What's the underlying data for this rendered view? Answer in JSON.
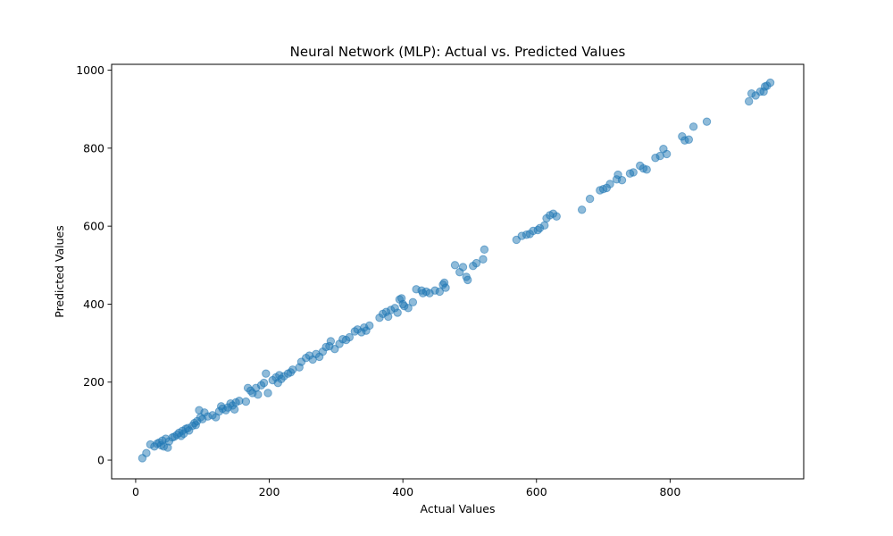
{
  "chart_data": {
    "type": "scatter",
    "title": "Neural Network (MLP): Actual vs. Predicted Values",
    "xlabel": "Actual Values",
    "ylabel": "Predicted Values",
    "xlim": [
      -36,
      1000
    ],
    "ylim": [
      -48,
      1015
    ],
    "xticks": [
      0,
      200,
      400,
      600,
      800
    ],
    "yticks": [
      0,
      200,
      400,
      600,
      800,
      1000
    ],
    "grid": false,
    "legend": "none",
    "point_color": "#1f77b4",
    "points": [
      [
        10,
        5
      ],
      [
        16,
        18
      ],
      [
        22,
        40
      ],
      [
        28,
        35
      ],
      [
        32,
        42
      ],
      [
        35,
        45
      ],
      [
        38,
        38
      ],
      [
        40,
        50
      ],
      [
        42,
        35
      ],
      [
        45,
        55
      ],
      [
        48,
        32
      ],
      [
        50,
        48
      ],
      [
        55,
        58
      ],
      [
        58,
        60
      ],
      [
        62,
        65
      ],
      [
        65,
        70
      ],
      [
        68,
        62
      ],
      [
        70,
        75
      ],
      [
        72,
        68
      ],
      [
        75,
        80
      ],
      [
        78,
        82
      ],
      [
        80,
        76
      ],
      [
        85,
        88
      ],
      [
        88,
        95
      ],
      [
        90,
        90
      ],
      [
        92,
        100
      ],
      [
        95,
        128
      ],
      [
        97,
        110
      ],
      [
        100,
        105
      ],
      [
        103,
        122
      ],
      [
        108,
        112
      ],
      [
        115,
        115
      ],
      [
        120,
        110
      ],
      [
        125,
        125
      ],
      [
        128,
        138
      ],
      [
        130,
        132
      ],
      [
        135,
        128
      ],
      [
        138,
        135
      ],
      [
        142,
        145
      ],
      [
        145,
        140
      ],
      [
        148,
        130
      ],
      [
        150,
        148
      ],
      [
        155,
        152
      ],
      [
        165,
        150
      ],
      [
        168,
        185
      ],
      [
        172,
        178
      ],
      [
        175,
        172
      ],
      [
        180,
        185
      ],
      [
        183,
        168
      ],
      [
        188,
        192
      ],
      [
        192,
        198
      ],
      [
        195,
        222
      ],
      [
        198,
        172
      ],
      [
        205,
        205
      ],
      [
        210,
        212
      ],
      [
        213,
        198
      ],
      [
        215,
        218
      ],
      [
        218,
        208
      ],
      [
        222,
        215
      ],
      [
        228,
        222
      ],
      [
        232,
        225
      ],
      [
        235,
        232
      ],
      [
        245,
        238
      ],
      [
        248,
        252
      ],
      [
        255,
        262
      ],
      [
        260,
        268
      ],
      [
        265,
        258
      ],
      [
        270,
        272
      ],
      [
        275,
        265
      ],
      [
        280,
        278
      ],
      [
        285,
        290
      ],
      [
        290,
        292
      ],
      [
        292,
        305
      ],
      [
        298,
        285
      ],
      [
        305,
        298
      ],
      [
        310,
        310
      ],
      [
        315,
        308
      ],
      [
        320,
        315
      ],
      [
        328,
        330
      ],
      [
        332,
        335
      ],
      [
        338,
        328
      ],
      [
        342,
        340
      ],
      [
        345,
        332
      ],
      [
        350,
        345
      ],
      [
        365,
        365
      ],
      [
        370,
        375
      ],
      [
        375,
        380
      ],
      [
        378,
        368
      ],
      [
        382,
        385
      ],
      [
        388,
        390
      ],
      [
        392,
        378
      ],
      [
        395,
        412
      ],
      [
        398,
        415
      ],
      [
        400,
        400
      ],
      [
        402,
        395
      ],
      [
        408,
        390
      ],
      [
        415,
        405
      ],
      [
        420,
        438
      ],
      [
        428,
        435
      ],
      [
        430,
        428
      ],
      [
        435,
        432
      ],
      [
        440,
        428
      ],
      [
        448,
        435
      ],
      [
        455,
        432
      ],
      [
        460,
        450
      ],
      [
        462,
        455
      ],
      [
        464,
        442
      ],
      [
        478,
        500
      ],
      [
        485,
        482
      ],
      [
        490,
        495
      ],
      [
        495,
        470
      ],
      [
        497,
        462
      ],
      [
        505,
        498
      ],
      [
        510,
        505
      ],
      [
        520,
        515
      ],
      [
        522,
        540
      ],
      [
        570,
        565
      ],
      [
        578,
        575
      ],
      [
        585,
        578
      ],
      [
        590,
        580
      ],
      [
        595,
        588
      ],
      [
        602,
        590
      ],
      [
        605,
        595
      ],
      [
        612,
        602
      ],
      [
        615,
        620
      ],
      [
        620,
        628
      ],
      [
        625,
        632
      ],
      [
        630,
        625
      ],
      [
        668,
        642
      ],
      [
        680,
        670
      ],
      [
        695,
        692
      ],
      [
        700,
        695
      ],
      [
        705,
        698
      ],
      [
        710,
        708
      ],
      [
        720,
        720
      ],
      [
        722,
        732
      ],
      [
        728,
        718
      ],
      [
        740,
        735
      ],
      [
        745,
        738
      ],
      [
        755,
        755
      ],
      [
        760,
        748
      ],
      [
        765,
        745
      ],
      [
        778,
        775
      ],
      [
        785,
        780
      ],
      [
        790,
        798
      ],
      [
        795,
        785
      ],
      [
        818,
        830
      ],
      [
        822,
        820
      ],
      [
        828,
        822
      ],
      [
        835,
        855
      ],
      [
        855,
        868
      ],
      [
        918,
        920
      ],
      [
        922,
        940
      ],
      [
        928,
        935
      ],
      [
        935,
        945
      ],
      [
        940,
        945
      ],
      [
        942,
        958
      ],
      [
        945,
        960
      ],
      [
        950,
        968
      ]
    ]
  }
}
